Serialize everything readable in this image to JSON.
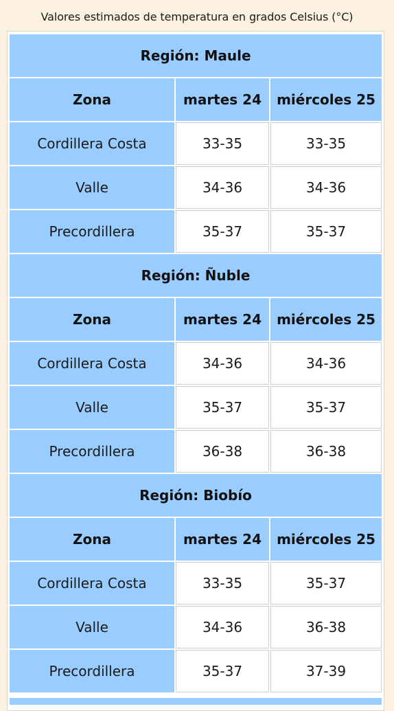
{
  "caption": "Valores estimados de temperatura en grados Celsius (°C)",
  "colors": {
    "page_background": "#fdf1e1",
    "header_blue": "#99ccff",
    "cell_white": "#ffffff"
  },
  "regions": [
    {
      "title": "Región: Maule",
      "headers": [
        "Zona",
        "martes 24",
        "miércoles 25"
      ],
      "rows": [
        {
          "zona": "Cordillera Costa",
          "d1": "33-35",
          "d2": "33-35"
        },
        {
          "zona": "Valle",
          "d1": "34-36",
          "d2": "34-36"
        },
        {
          "zona": "Precordillera",
          "d1": "35-37",
          "d2": "35-37"
        }
      ]
    },
    {
      "title": "Región: Ñuble",
      "headers": [
        "Zona",
        "martes 24",
        "miércoles 25"
      ],
      "rows": [
        {
          "zona": "Cordillera Costa",
          "d1": "34-36",
          "d2": "34-36"
        },
        {
          "zona": "Valle",
          "d1": "35-37",
          "d2": "35-37"
        },
        {
          "zona": "Precordillera",
          "d1": "36-38",
          "d2": "36-38"
        }
      ]
    },
    {
      "title": "Región: Biobío",
      "headers": [
        "Zona",
        "martes 24",
        "miércoles 25"
      ],
      "rows": [
        {
          "zona": "Cordillera Costa",
          "d1": "33-35",
          "d2": "35-37"
        },
        {
          "zona": "Valle",
          "d1": "34-36",
          "d2": "36-38"
        },
        {
          "zona": "Precordillera",
          "d1": "35-37",
          "d2": "37-39"
        }
      ]
    }
  ]
}
